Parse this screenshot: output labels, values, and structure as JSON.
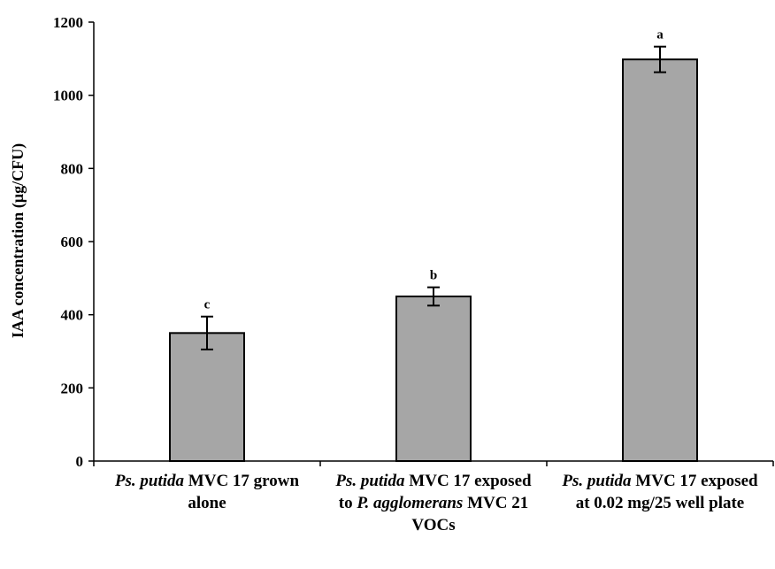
{
  "chart_data": {
    "type": "bar",
    "title": "",
    "ylabel": "IAA concentration (µg/CFU)",
    "xlabel": "",
    "ylim": [
      0,
      1200
    ],
    "yticks": [
      0,
      200,
      400,
      600,
      800,
      1000,
      1200
    ],
    "grid": false,
    "bar_color": "#a6a6a6",
    "categories": [
      "Ps. putida MVC 17 grown alone",
      "Ps. putida MVC 17 exposed to P. agglomerans MVC 21 VOCs",
      "Ps. putida MVC 17 exposed at 0.02 mg/25 well plate"
    ],
    "category_parts": [
      [
        {
          "text": "Ps. putida",
          "italic": true
        },
        {
          "text": " MVC 17 grown alone",
          "italic": false
        }
      ],
      [
        {
          "text": "Ps. putida",
          "italic": true
        },
        {
          "text": " MVC 17 exposed to ",
          "italic": false
        },
        {
          "text": "P. agglomerans",
          "italic": true
        },
        {
          "text": " MVC 21 VOCs",
          "italic": false
        }
      ],
      [
        {
          "text": "Ps. putida",
          "italic": true
        },
        {
          "text": " MVC 17 exposed at 0.02 mg/25 well plate",
          "italic": false
        }
      ]
    ],
    "values": [
      350,
      450,
      1098
    ],
    "errors": [
      45,
      25,
      35
    ],
    "significance": [
      "c",
      "b",
      "a"
    ]
  }
}
